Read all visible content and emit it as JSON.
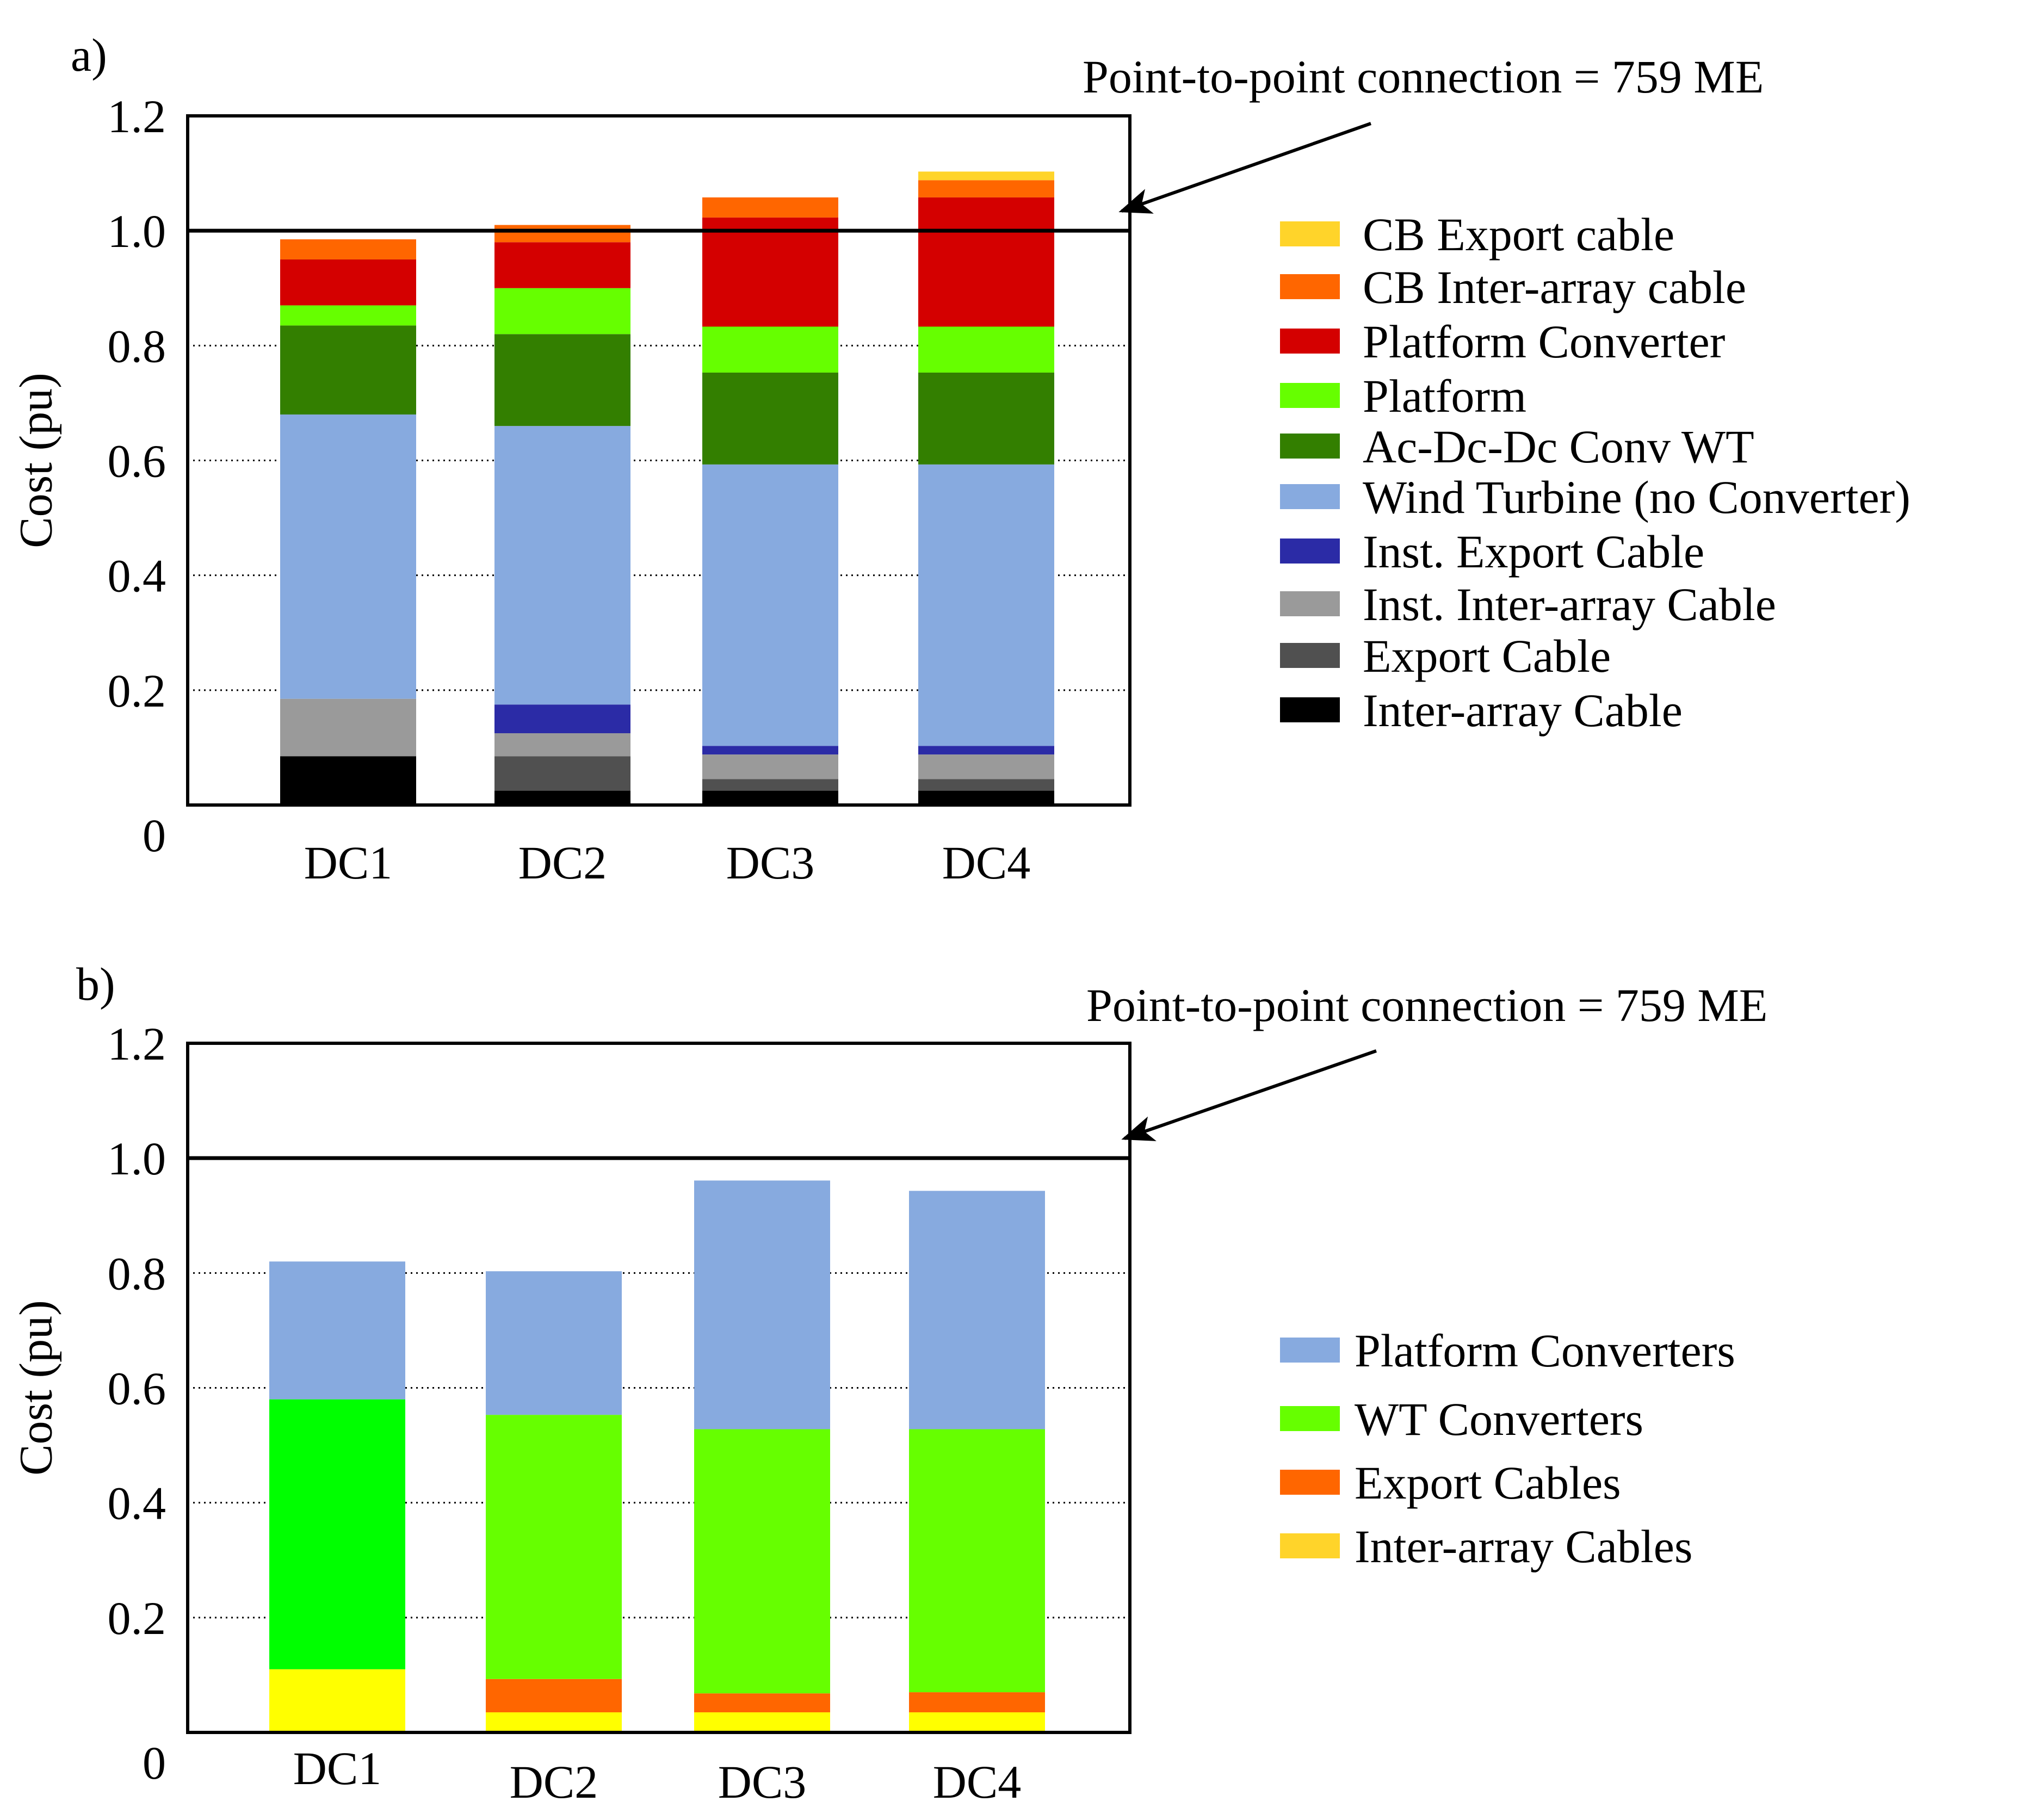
{
  "chart_data": [
    {
      "panel_label": "a)",
      "type": "bar",
      "stacked": true,
      "ylabel": "Cost (pu)",
      "yticks": [
        "0",
        "0.2",
        "0.4",
        "0.6",
        "0.8",
        "1.0",
        "1.2"
      ],
      "ylim": [
        0,
        1.2
      ],
      "categories": [
        "DC1",
        "DC2",
        "DC3",
        "DC4"
      ],
      "reference_line": {
        "value": 1.0,
        "annotation": "Point-to-point connection = 759 ME"
      },
      "series": [
        {
          "name": "Inter-array Cable",
          "color": "#000000",
          "values": [
            0.085,
            0.025,
            0.025,
            0.025
          ]
        },
        {
          "name": "Export Cable",
          "color": "#505050",
          "values": [
            0,
            0.06,
            0.02,
            0.02
          ]
        },
        {
          "name": "Inst. Inter-array Cable",
          "color": "#9a9a9a",
          "values": [
            0.1,
            0.04,
            0.043,
            0.043
          ]
        },
        {
          "name": "Inst. Export Cable",
          "color": "#2b2ba6",
          "values": [
            0,
            0.05,
            0.015,
            0.015
          ]
        },
        {
          "name": "Wind Turbine (no Converter)",
          "color": "#87aadf",
          "values": [
            0.495,
            0.485,
            0.49,
            0.49
          ]
        },
        {
          "name": "Ac-Dc-Dc Conv WT",
          "color": "#337f00",
          "values": [
            0.155,
            0.16,
            0.16,
            0.16
          ]
        },
        {
          "name": "Platform",
          "color": "#66ff00",
          "values": [
            0.035,
            0.08,
            0.08,
            0.08
          ]
        },
        {
          "name": "Platform Converter",
          "color": "#d40000",
          "values": [
            0.08,
            0.08,
            0.19,
            0.225
          ]
        },
        {
          "name": "CB Inter-array cable",
          "color": "#ff6600",
          "values": [
            0.035,
            0.03,
            0.035,
            0.03
          ]
        },
        {
          "name": "CB Export cable",
          "color": "#ffd42a",
          "values": [
            0,
            0,
            0,
            0.015
          ]
        }
      ]
    },
    {
      "panel_label": "b)",
      "type": "bar",
      "stacked": true,
      "ylabel": "Cost (pu)",
      "yticks": [
        "0",
        "0.2",
        "0.4",
        "0.6",
        "0.8",
        "1.0",
        "1.2"
      ],
      "ylim": [
        0,
        1.2
      ],
      "categories": [
        "DC1",
        "DC2",
        "DC3",
        "DC4"
      ],
      "reference_line": {
        "value": 1.0,
        "annotation": "Point-to-point connection = 759 ME"
      },
      "series": [
        {
          "name": "Inter-array Cables",
          "color": "#ffd42a",
          "values": [
            0.11,
            0.035,
            0.035,
            0.035
          ],
          "bar_colors": [
            "#ffff00",
            "#ffff00",
            "#ffff00",
            "#ffff00"
          ]
        },
        {
          "name": "Export Cables",
          "color": "#ff6600",
          "values": [
            0,
            0.058,
            0.033,
            0.035
          ]
        },
        {
          "name": "WT Converters",
          "color": "#66ff00",
          "values": [
            0.47,
            0.46,
            0.46,
            0.458
          ],
          "bar_colors": [
            "#00ff00",
            "#66ff00",
            "#66ff00",
            "#66ff00"
          ]
        },
        {
          "name": "Platform Converters",
          "color": "#87aadf",
          "values": [
            0.24,
            0.25,
            0.433,
            0.415
          ]
        }
      ]
    }
  ]
}
